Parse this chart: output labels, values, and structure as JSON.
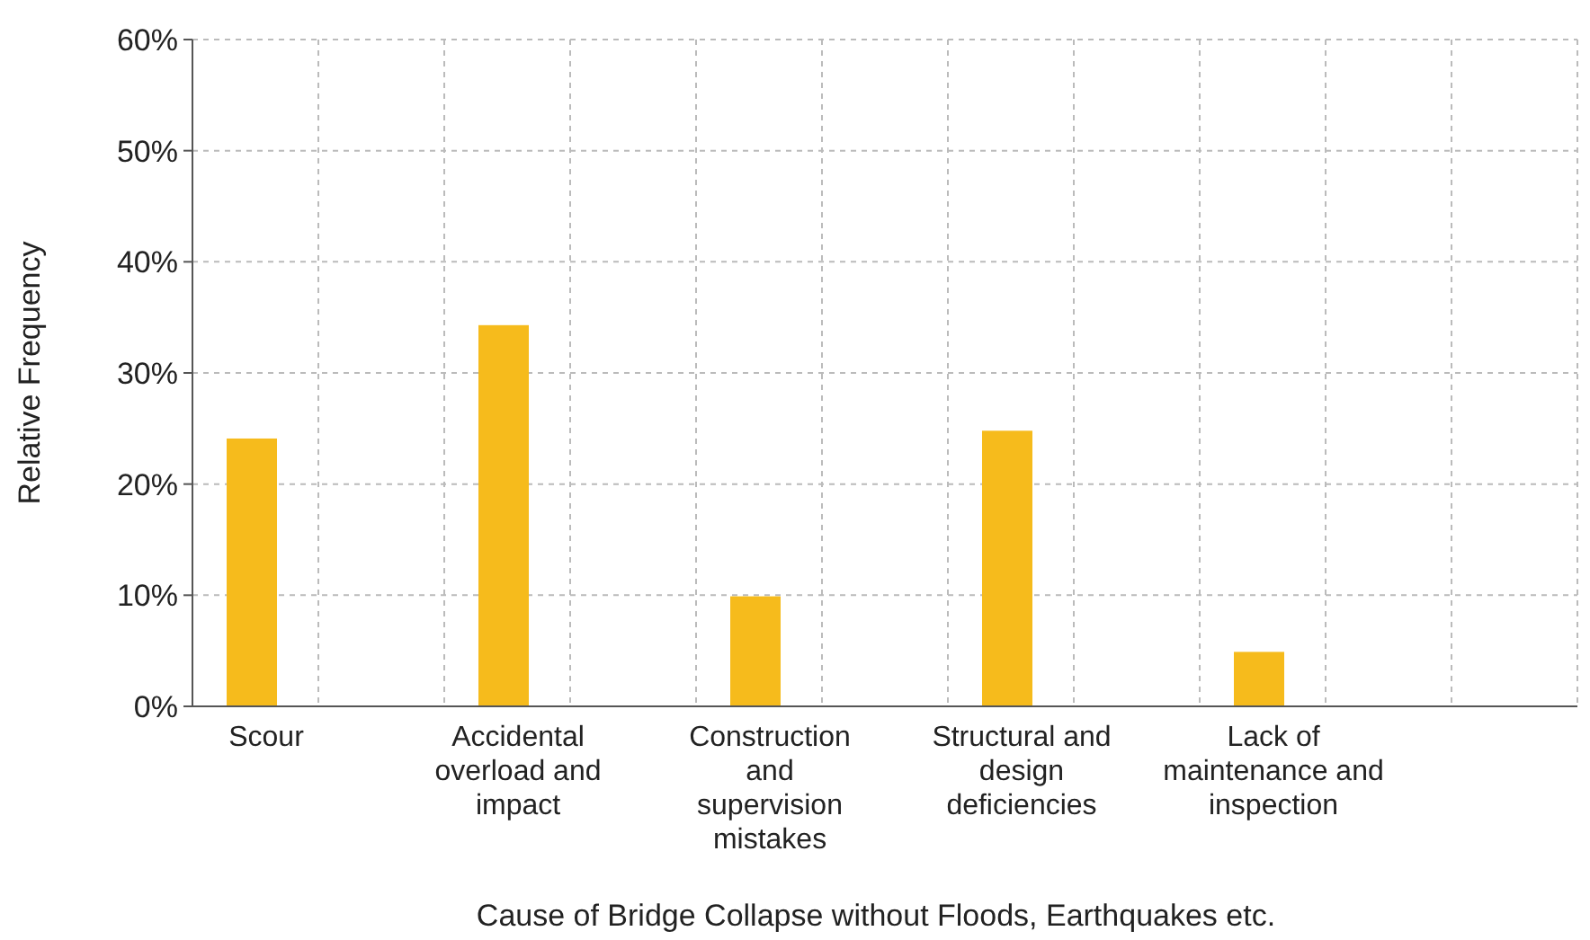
{
  "chart_data": {
    "type": "bar",
    "xlabel": "Cause of Bridge Collapse without Floods, Earthquakes etc.",
    "ylabel": "Relative Frequency",
    "categories": [
      "Scour",
      "Accidental\noverload and\nimpact",
      "Construction\nand\nsupervision\nmistakes",
      "Structural and\ndesign\ndeficiencies",
      "Lack of\nmaintenance and\ninspection"
    ],
    "values": [
      24.1,
      34.3,
      9.9,
      24.8,
      4.9
    ],
    "color": "#f6bb1c",
    "ylim": [
      0,
      60
    ],
    "yticks": [
      {
        "value": 0,
        "label": "0%"
      },
      {
        "value": 10,
        "label": "10%"
      },
      {
        "value": 20,
        "label": "20%"
      },
      {
        "value": 30,
        "label": "30%"
      },
      {
        "value": 40,
        "label": "40%"
      },
      {
        "value": 50,
        "label": "50%"
      },
      {
        "value": 60,
        "label": "60%"
      }
    ],
    "grid": true
  }
}
